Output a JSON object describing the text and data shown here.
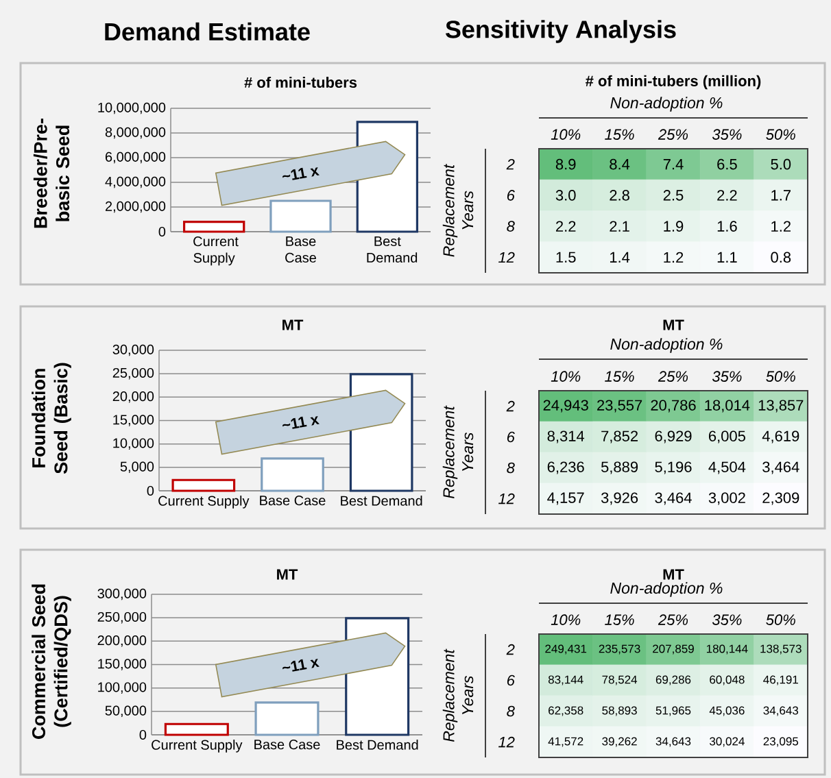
{
  "chart_data": [
    {
      "type": "bar",
      "title": "# of mini-tubers",
      "ylabel": "Breeder/Pre-basic Seed",
      "categories": [
        "Current Supply",
        "Base Case",
        "Best Demand"
      ],
      "values": [
        800000,
        2500000,
        8900000
      ],
      "colors": [
        "#c00000",
        "#7f9fbd",
        "#1f3864"
      ],
      "ylim": [
        0,
        10000000
      ],
      "yticks": [
        0,
        {
          "value": 2000000,
          "label": "2,000,000"
        },
        {
          "value": 4000000,
          "label": "4,000,000"
        },
        {
          "value": 6000000,
          "label": "6,000,000"
        },
        {
          "value": 8000000,
          "label": "8,000,000"
        },
        {
          "value": 10000000,
          "label": "10,000,000"
        }
      ],
      "grid": "y",
      "annotations": [
        "~11 x",
        "Demand Estimate"
      ]
    },
    {
      "type": "heatmap",
      "title": "# of mini-tubers (million)",
      "xlabel": "Non-adoption %",
      "ylabel": "Replacement Years",
      "categories": [
        "10%",
        "15%",
        "25%",
        "35%",
        "50%"
      ],
      "y_categories": [
        "2",
        "6",
        "8",
        "12"
      ],
      "cells": [
        [
          8.9,
          8.4,
          7.4,
          6.5,
          5.0
        ],
        [
          3.0,
          2.8,
          2.5,
          2.2,
          1.7
        ],
        [
          2.2,
          2.1,
          1.9,
          1.6,
          1.2
        ],
        [
          1.5,
          1.4,
          1.2,
          1.1,
          0.8
        ]
      ],
      "cell_labels": [
        [
          "8.9",
          "8.4",
          "7.4",
          "6.5",
          "5.0"
        ],
        [
          "3.0",
          "2.8",
          "2.5",
          "2.2",
          "1.7"
        ],
        [
          "2.2",
          "2.1",
          "1.9",
          "1.6",
          "1.2"
        ],
        [
          "1.5",
          "1.4",
          "1.2",
          "1.1",
          "0.8"
        ]
      ],
      "annotations": [
        "Sensitivity Analysis"
      ]
    },
    {
      "type": "bar",
      "title": "MT",
      "ylabel": "Foundation Seed (Basic)",
      "categories": [
        "Current Supply",
        "Base Case",
        "Best Demand"
      ],
      "values": [
        2300,
        6900,
        24900
      ],
      "colors": [
        "#c00000",
        "#7f9fbd",
        "#1f3864"
      ],
      "ylim": [
        0,
        30000
      ],
      "yticks": [
        0,
        {
          "value": 5000,
          "label": "5,000"
        },
        {
          "value": 10000,
          "label": "10,000"
        },
        {
          "value": 15000,
          "label": "15,000"
        },
        {
          "value": 20000,
          "label": "20,000"
        },
        {
          "value": 25000,
          "label": "25,000"
        },
        {
          "value": 30000,
          "label": "30,000"
        }
      ],
      "grid": "y",
      "annotations": [
        "~11 x"
      ]
    },
    {
      "type": "heatmap",
      "title": "MT",
      "xlabel": "Non-adoption %",
      "ylabel": "Replacement Years",
      "categories": [
        "10%",
        "15%",
        "25%",
        "35%",
        "50%"
      ],
      "y_categories": [
        "2",
        "6",
        "8",
        "12"
      ],
      "cells": [
        [
          24943,
          23557,
          20786,
          18014,
          13857
        ],
        [
          8314,
          7852,
          6929,
          6005,
          4619
        ],
        [
          6236,
          5889,
          5196,
          4504,
          3464
        ],
        [
          4157,
          3926,
          3464,
          3002,
          2309
        ]
      ],
      "cell_labels": [
        [
          "24,943",
          "23,557",
          "20,786",
          "18,014",
          "13,857"
        ],
        [
          "8,314",
          "7,852",
          "6,929",
          "6,005",
          "4,619"
        ],
        [
          "6,236",
          "5,889",
          "5,196",
          "4,504",
          "3,464"
        ],
        [
          "4,157",
          "3,926",
          "3,464",
          "3,002",
          "2,309"
        ]
      ]
    },
    {
      "type": "bar",
      "title": "MT",
      "ylabel": "Commercial Seed (Certified/QDS)",
      "categories": [
        "Current Supply",
        "Base Case",
        "Best Demand"
      ],
      "values": [
        23000,
        69000,
        249000
      ],
      "colors": [
        "#c00000",
        "#7f9fbd",
        "#1f3864"
      ],
      "ylim": [
        0,
        300000
      ],
      "yticks": [
        0,
        {
          "value": 50000,
          "label": "50,000"
        },
        {
          "value": 100000,
          "label": "100,000"
        },
        {
          "value": 150000,
          "label": "150,000"
        },
        {
          "value": 200000,
          "label": "200,000"
        },
        {
          "value": 250000,
          "label": "250,000"
        },
        {
          "value": 300000,
          "label": "300,000"
        }
      ],
      "grid": "y",
      "annotations": [
        "~11 x"
      ]
    },
    {
      "type": "heatmap",
      "title": "MT",
      "xlabel": "Non-adoption %",
      "ylabel": "Replacement Years",
      "categories": [
        "10%",
        "15%",
        "25%",
        "35%",
        "50%"
      ],
      "y_categories": [
        "2",
        "6",
        "8",
        "12"
      ],
      "cells": [
        [
          249431,
          235573,
          207859,
          180144,
          138573
        ],
        [
          83144,
          78524,
          69286,
          60048,
          46191
        ],
        [
          62358,
          58893,
          51965,
          45036,
          34643
        ],
        [
          41572,
          39262,
          34643,
          30024,
          23095
        ]
      ],
      "cell_labels": [
        [
          "249,431",
          "235,573",
          "207,859",
          "180,144",
          "138,573"
        ],
        [
          "83,144",
          "78,524",
          "69,286",
          "60,048",
          "46,191"
        ],
        [
          "62,358",
          "58,893",
          "51,965",
          "45,036",
          "34,643"
        ],
        [
          "41,572",
          "39,262",
          "34,643",
          "30,024",
          "23,095"
        ]
      ]
    }
  ]
}
